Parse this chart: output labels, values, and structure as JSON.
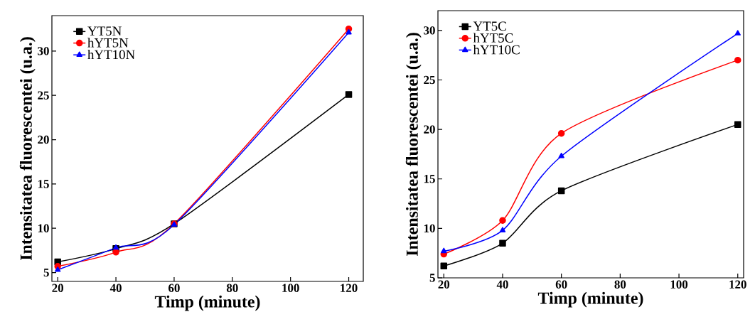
{
  "chart_data": [
    {
      "type": "line",
      "xlabel": "Timp (minute)",
      "ylabel": "Intensitatea fluorescentei (u.a.)",
      "x": [
        20,
        40,
        60,
        120
      ],
      "xlim": [
        18,
        125
      ],
      "ylim": [
        4,
        34
      ],
      "xticks": [
        20,
        40,
        60,
        80,
        100,
        120
      ],
      "yticks": [
        5,
        10,
        15,
        20,
        25,
        30
      ],
      "legend": "top left",
      "series": [
        {
          "name": "YT5N",
          "color": "#000000",
          "marker": "square",
          "values": [
            6.2,
            7.7,
            10.5,
            25.1
          ]
        },
        {
          "name": "hYT5N",
          "color": "#ff0000",
          "marker": "circle",
          "values": [
            5.7,
            7.3,
            10.5,
            32.5
          ]
        },
        {
          "name": "hYT10N",
          "color": "#0000ff",
          "marker": "triangle",
          "values": [
            5.3,
            7.8,
            10.4,
            32.1
          ]
        }
      ]
    },
    {
      "type": "line",
      "xlabel": "Timp (minute)",
      "ylabel": "Intensitatea fluorescentei (u.a.)",
      "x": [
        20,
        40,
        60,
        120
      ],
      "xlim": [
        18,
        122
      ],
      "ylim": [
        5,
        32
      ],
      "xticks": [
        20,
        40,
        60,
        80,
        100,
        120
      ],
      "yticks": [
        5,
        10,
        15,
        20,
        25,
        30
      ],
      "legend": "top left",
      "series": [
        {
          "name": "YT5C",
          "color": "#000000",
          "marker": "square",
          "values": [
            6.2,
            8.5,
            13.8,
            20.5
          ]
        },
        {
          "name": "hYT5C",
          "color": "#ff0000",
          "marker": "circle",
          "values": [
            7.4,
            10.8,
            19.6,
            27.0
          ]
        },
        {
          "name": "hYT10C",
          "color": "#0000ff",
          "marker": "triangle",
          "values": [
            7.7,
            9.8,
            17.3,
            29.7
          ]
        }
      ]
    }
  ]
}
